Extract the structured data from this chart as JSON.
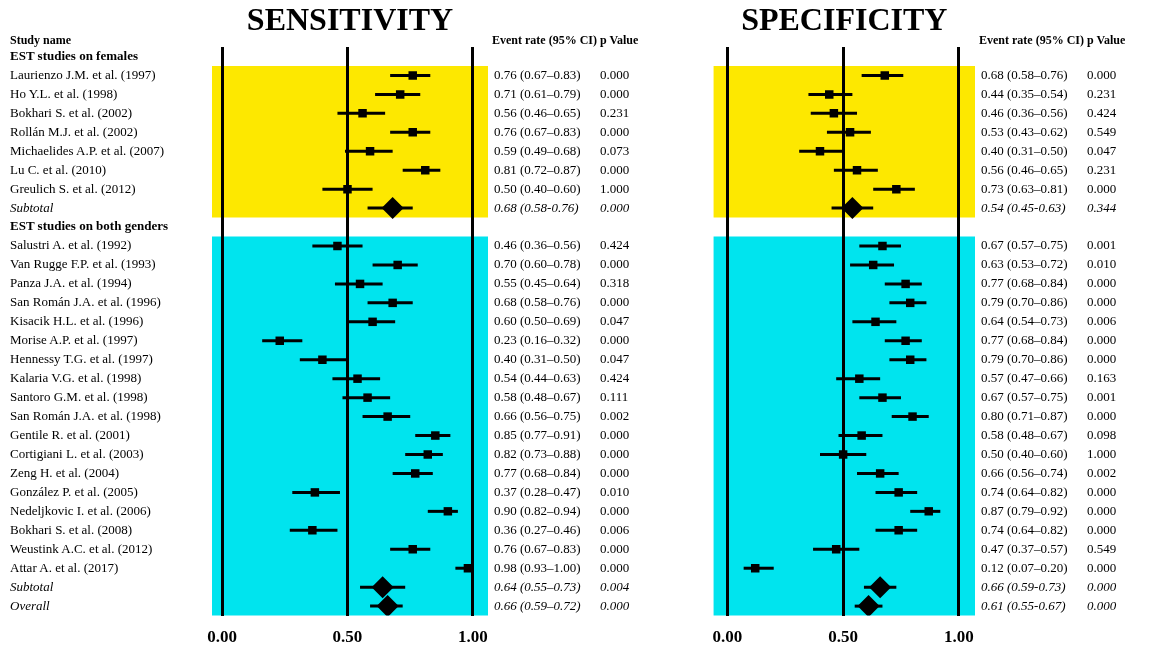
{
  "chart_data": [
    {
      "type": "scatter",
      "orientation": "horizontal",
      "title": "SENSITIVITY",
      "categories": [
        "EST studies on females",
        "Laurienzo J.M. et al. (1997)",
        "Ho Y.L. et al. (1998)",
        "Bokhari S. et al. (2002)",
        "Rollán M.J. et al. (2002)",
        "Michaelides A.P. et al. (2007)",
        "Lu C. et al. (2010)",
        "Greulich S. et al. (2012)",
        "Subtotal",
        "EST studies on both genders",
        "Salustri A. et al. (1992)",
        "Van Rugge F.P. et al. (1993)",
        "Panza J.A. et al. (1994)",
        "San Román J.A. et al. (1996)",
        "Kisacik H.L. et al. (1996)",
        "Morise A.P. et al. (1997)",
        "Hennessy T.G. et al. (1997)",
        "Kalaria V.G. et al. (1998)",
        "Santoro G.M. et al. (1998)",
        "San Román J.A. et al. (1998)",
        "Gentile R. et al. (2001)",
        "Cortigiani L. et al. (2003)",
        "Zeng H. et al. (2004)",
        "González P. et al. (2005)",
        "Nedeljkovic I. et al. (2006)",
        "Bokhari S. et al. (2008)",
        "Weustink A.C. et al. (2012)",
        "Attar A. et al. (2017)",
        "Subtotal",
        "Overall"
      ],
      "series": [
        {
          "color": "#000000",
          "marker": "square",
          "values": [
            null,
            0.76,
            0.71,
            0.56,
            0.76,
            0.59,
            0.81,
            0.5,
            null,
            null,
            0.46,
            0.7,
            0.55,
            0.68,
            0.6,
            0.23,
            0.4,
            0.54,
            0.58,
            0.66,
            0.85,
            0.82,
            0.77,
            0.37,
            0.9,
            0.36,
            0.76,
            0.98,
            null,
            null
          ],
          "errors": [
            null,
            [
              0.67,
              0.83
            ],
            [
              0.61,
              0.79
            ],
            [
              0.46,
              0.65
            ],
            [
              0.67,
              0.83
            ],
            [
              0.49,
              0.68
            ],
            [
              0.72,
              0.87
            ],
            [
              0.4,
              0.6
            ],
            null,
            null,
            [
              0.36,
              0.56
            ],
            [
              0.6,
              0.78
            ],
            [
              0.45,
              0.64
            ],
            [
              0.58,
              0.76
            ],
            [
              0.5,
              0.69
            ],
            [
              0.16,
              0.32
            ],
            [
              0.31,
              0.5
            ],
            [
              0.44,
              0.63
            ],
            [
              0.48,
              0.67
            ],
            [
              0.56,
              0.75
            ],
            [
              0.77,
              0.91
            ],
            [
              0.73,
              0.88
            ],
            [
              0.68,
              0.84
            ],
            [
              0.28,
              0.47
            ],
            [
              0.82,
              0.94
            ],
            [
              0.27,
              0.46
            ],
            [
              0.67,
              0.83
            ],
            [
              0.93,
              1.0
            ],
            null,
            null
          ],
          "value_labels": [
            null,
            "0.76 (0.67–0.83)",
            "0.71 (0.61–0.79)",
            "0.56 (0.46–0.65)",
            "0.76 (0.67–0.83)",
            "0.59 (0.49–0.68)",
            "0.81 (0.72–0.87)",
            "0.50 (0.40–0.60)",
            null,
            null,
            "0.46 (0.36–0.56)",
            "0.70 (0.60–0.78)",
            "0.55 (0.45–0.64)",
            "0.68 (0.58–0.76)",
            "0.60 (0.50–0.69)",
            "0.23 (0.16–0.32)",
            "0.40 (0.31–0.50)",
            "0.54 (0.44–0.63)",
            "0.58 (0.48–0.67)",
            "0.66 (0.56–0.75)",
            "0.85 (0.77–0.91)",
            "0.82 (0.73–0.88)",
            "0.77 (0.68–0.84)",
            "0.37 (0.28–0.47)",
            "0.90 (0.82–0.94)",
            "0.36 (0.27–0.46)",
            "0.76 (0.67–0.83)",
            "0.98 (0.93–1.00)",
            null,
            null
          ]
        },
        {
          "color": "#000000",
          "marker": "diamond",
          "values": [
            null,
            null,
            null,
            null,
            null,
            null,
            null,
            null,
            0.68,
            null,
            null,
            null,
            null,
            null,
            null,
            null,
            null,
            null,
            null,
            null,
            null,
            null,
            null,
            null,
            null,
            null,
            null,
            null,
            0.64,
            0.66
          ],
          "errors": [
            null,
            null,
            null,
            null,
            null,
            null,
            null,
            null,
            [
              0.58,
              0.76
            ],
            null,
            null,
            null,
            null,
            null,
            null,
            null,
            null,
            null,
            null,
            null,
            null,
            null,
            null,
            null,
            null,
            null,
            null,
            null,
            [
              0.55,
              0.73
            ],
            [
              0.59,
              0.72
            ]
          ]
        }
      ],
      "xlim": [
        -0.04,
        1.06
      ],
      "xticks": [
        {
          "value": 0,
          "label": "0.00"
        },
        {
          "value": 0.5,
          "label": "0.50"
        },
        {
          "value": 1,
          "label": "1.00"
        }
      ],
      "grid": "x",
      "bands": [
        {
          "axis": "y",
          "from": "Laurienzo J.M. et al. (1997)",
          "to": "Subtotal",
          "color": "#fde800"
        },
        {
          "axis": "y",
          "from": "Salustri A. et al. (1992)",
          "to": "Overall",
          "color": "#00e4ee"
        }
      ],
      "annotations": [
        "Study name",
        "Event rate (95% CI)",
        "p Value",
        "0.000",
        "0.000",
        "0.231",
        "0.000",
        "0.073",
        "0.000",
        "1.000",
        "0.68 (0.58-0.76)",
        "0.000",
        "0.424",
        "0.000",
        "0.318",
        "0.000",
        "0.047",
        "0.000",
        "0.047",
        "0.424",
        "0.111",
        "0.002",
        "0.000",
        "0.000",
        "0.000",
        "0.010",
        "0.000",
        "0.006",
        "0.000",
        "0.000",
        "0.64 (0.55–0.73)",
        "0.004",
        "0.66 (0.59–0.72)",
        "0.000"
      ]
    },
    {
      "type": "scatter",
      "orientation": "horizontal",
      "title": "SPECIFICITY",
      "tick_labels": "x",
      "categories": [
        "EST studies on females",
        "Laurienzo J.M. et al. (1997)",
        "Ho Y.L. et al. (1998)",
        "Bokhari S. et al. (2002)",
        "Rollán M.J. et al. (2002)",
        "Michaelides A.P. et al. (2007)",
        "Lu C. et al. (2010)",
        "Greulich S. et al. (2012)",
        "Subtotal",
        "EST studies on both genders",
        "Salustri A. et al. (1992)",
        "Van Rugge F.P. et al. (1993)",
        "Panza J.A. et al. (1994)",
        "San Román J.A. et al. (1996)",
        "Kisacik H.L. et al. (1996)",
        "Morise A.P. et al. (1997)",
        "Hennessy T.G. et al. (1997)",
        "Kalaria V.G. et al. (1998)",
        "Santoro G.M. et al. (1998)",
        "San Román J.A. et al. (1998)",
        "Gentile R. et al. (2001)",
        "Cortigiani L. et al. (2003)",
        "Zeng H. et al. (2004)",
        "González P. et al. (2005)",
        "Nedeljkovic I. et al. (2006)",
        "Bokhari S. et al. (2008)",
        "Weustink A.C. et al. (2012)",
        "Attar A. et al. (2017)",
        "Subtotal",
        "Overall"
      ],
      "series": [
        {
          "color": "#000000",
          "marker": "square",
          "values": [
            null,
            0.68,
            0.44,
            0.46,
            0.53,
            0.4,
            0.56,
            0.73,
            null,
            null,
            0.67,
            0.63,
            0.77,
            0.79,
            0.64,
            0.77,
            0.79,
            0.57,
            0.67,
            0.8,
            0.58,
            0.5,
            0.66,
            0.74,
            0.87,
            0.74,
            0.47,
            0.12,
            null,
            null
          ],
          "errors": [
            null,
            [
              0.58,
              0.76
            ],
            [
              0.35,
              0.54
            ],
            [
              0.36,
              0.56
            ],
            [
              0.43,
              0.62
            ],
            [
              0.31,
              0.5
            ],
            [
              0.46,
              0.65
            ],
            [
              0.63,
              0.81
            ],
            null,
            null,
            [
              0.57,
              0.75
            ],
            [
              0.53,
              0.72
            ],
            [
              0.68,
              0.84
            ],
            [
              0.7,
              0.86
            ],
            [
              0.54,
              0.73
            ],
            [
              0.68,
              0.84
            ],
            [
              0.7,
              0.86
            ],
            [
              0.47,
              0.66
            ],
            [
              0.57,
              0.75
            ],
            [
              0.71,
              0.87
            ],
            [
              0.48,
              0.67
            ],
            [
              0.4,
              0.6
            ],
            [
              0.56,
              0.74
            ],
            [
              0.64,
              0.82
            ],
            [
              0.79,
              0.92
            ],
            [
              0.64,
              0.82
            ],
            [
              0.37,
              0.57
            ],
            [
              0.07,
              0.2
            ],
            null,
            null
          ],
          "value_labels": [
            null,
            "0.68 (0.58–0.76)",
            "0.44 (0.35–0.54)",
            "0.46 (0.36–0.56)",
            "0.53 (0.43–0.62)",
            "0.40 (0.31–0.50)",
            "0.56 (0.46–0.65)",
            "0.73 (0.63–0.81)",
            null,
            null,
            "0.67 (0.57–0.75)",
            "0.63 (0.53–0.72)",
            "0.77 (0.68–0.84)",
            "0.79 (0.70–0.86)",
            "0.64 (0.54–0.73)",
            "0.77 (0.68–0.84)",
            "0.79 (0.70–0.86)",
            "0.57 (0.47–0.66)",
            "0.67 (0.57–0.75)",
            "0.80 (0.71–0.87)",
            "0.58 (0.48–0.67)",
            "0.50 (0.40–0.60)",
            "0.66 (0.56–0.74)",
            "0.74 (0.64–0.82)",
            "0.87 (0.79–0.92)",
            "0.74 (0.64–0.82)",
            "0.47 (0.37–0.57)",
            "0.12 (0.07–0.20)",
            null,
            null
          ]
        },
        {
          "color": "#000000",
          "marker": "diamond",
          "values": [
            null,
            null,
            null,
            null,
            null,
            null,
            null,
            null,
            0.54,
            null,
            null,
            null,
            null,
            null,
            null,
            null,
            null,
            null,
            null,
            null,
            null,
            null,
            null,
            null,
            null,
            null,
            null,
            null,
            0.66,
            0.61
          ],
          "errors": [
            null,
            null,
            null,
            null,
            null,
            null,
            null,
            null,
            [
              0.45,
              0.63
            ],
            null,
            null,
            null,
            null,
            null,
            null,
            null,
            null,
            null,
            null,
            null,
            null,
            null,
            null,
            null,
            null,
            null,
            null,
            null,
            [
              0.59,
              0.73
            ],
            [
              0.55,
              0.67
            ]
          ]
        }
      ],
      "xlim": [
        -0.06,
        1.07
      ],
      "xticks": [
        {
          "value": 0,
          "label": "0.00"
        },
        {
          "value": 0.5,
          "label": "0.50"
        },
        {
          "value": 1,
          "label": "1.00"
        }
      ],
      "grid": "x",
      "bands": [
        {
          "axis": "y",
          "from": "Laurienzo J.M. et al. (1997)",
          "to": "Subtotal",
          "color": "#fde800"
        },
        {
          "axis": "y",
          "from": "Salustri A. et al. (1992)",
          "to": "Overall",
          "color": "#00e4ee"
        }
      ],
      "annotations": [
        "Event rate (95% CI)",
        "p Value",
        "0.000",
        "0.231",
        "0.424",
        "0.549",
        "0.047",
        "0.231",
        "0.000",
        "0.54 (0.45-0.63)",
        "0.344",
        "0.001",
        "0.010",
        "0.000",
        "0.000",
        "0.006",
        "0.000",
        "0.000",
        "0.163",
        "0.001",
        "0.000",
        "0.098",
        "1.000",
        "0.002",
        "0.000",
        "0.000",
        "0.000",
        "0.549",
        "0.000",
        "0.66 (0.59-0.73)",
        "0.000",
        "0.61 (0.55-0.67)",
        "0.000"
      ]
    }
  ]
}
